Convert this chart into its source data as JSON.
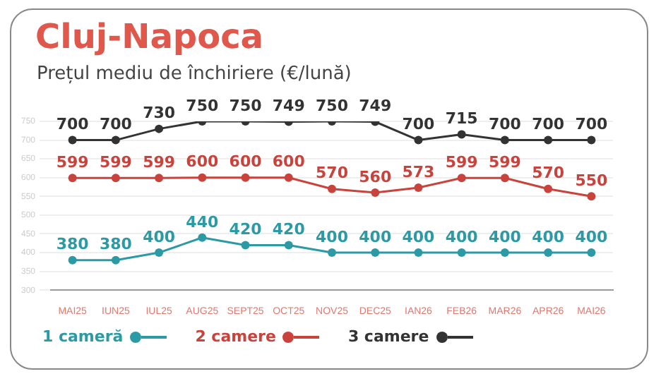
{
  "chart_data": {
    "type": "line",
    "title": "Cluj-Napoca",
    "subtitle": "Prețul mediu de închiriere (€/lună)",
    "categories": [
      "MAI25",
      "IUN25",
      "IUL25",
      "AUG25",
      "SEPT25",
      "OCT25",
      "NOV25",
      "DEC25",
      "IAN26",
      "FEB26",
      "MAR26",
      "APR26",
      "MAI26"
    ],
    "series": [
      {
        "name": "1 cameră",
        "color": "#2b9aa5",
        "values": [
          380,
          380,
          400,
          440,
          420,
          420,
          400,
          400,
          400,
          400,
          400,
          400,
          400
        ]
      },
      {
        "name": "2 camere",
        "color": "#c9423b",
        "values": [
          599,
          599,
          599,
          600,
          600,
          600,
          570,
          560,
          573,
          599,
          599,
          570,
          550
        ]
      },
      {
        "name": "3 camere",
        "color": "#333333",
        "values": [
          700,
          700,
          730,
          750,
          750,
          749,
          750,
          749,
          700,
          715,
          700,
          700,
          700
        ]
      }
    ],
    "ylim": [
      300,
      750
    ],
    "yticks": [
      300,
      350,
      400,
      450,
      500,
      550,
      600,
      650,
      700,
      750
    ],
    "grid": "y",
    "legend": "bottom left",
    "marker": "circle",
    "line_style": "solid",
    "data_labels": true
  }
}
